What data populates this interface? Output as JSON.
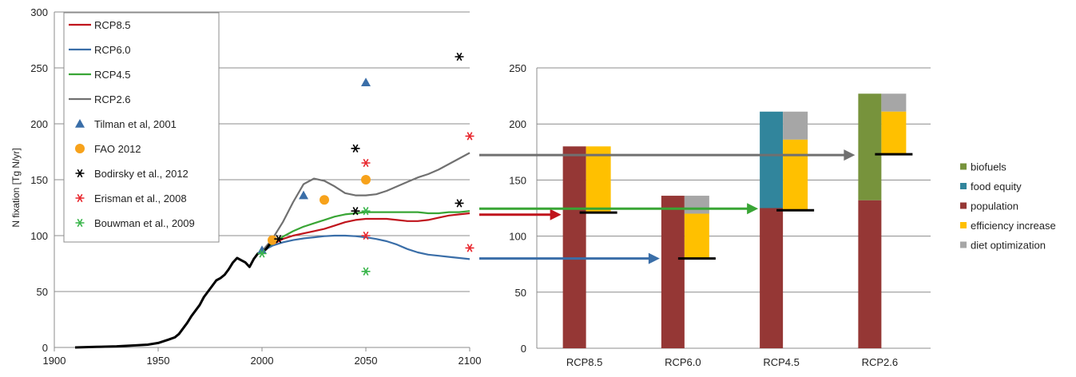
{
  "colors": {
    "rcp85": "#c0141c",
    "rcp60": "#3a6ea8",
    "rcp45": "#39a535",
    "rcp26": "#707070",
    "historical": "#000000",
    "tilman": "#3a6ea8",
    "fao": "#f7a21b",
    "bodirsky": "#000000",
    "erisman": "#e8262d",
    "bouwman": "#39b54a",
    "biofuels": "#77933c",
    "food_equity": "#31859c",
    "population": "#953735",
    "efficiency_increase": "#ffc000",
    "diet_optimization": "#a6a6a6",
    "grid": "#8c8c8c",
    "target_line": "#000000"
  },
  "chart_data": [
    {
      "type": "line",
      "xlim": [
        1900,
        2100
      ],
      "ylim": [
        0,
        300
      ],
      "x_ticks": [
        "1900",
        "1950",
        "2000",
        "2050",
        "2100"
      ],
      "y_ticks": [
        "0",
        "50",
        "100",
        "150",
        "200",
        "250",
        "300"
      ],
      "ylabel": "N fixation [Tg N/yr]",
      "xlabel": "",
      "grid": "horizontal",
      "legend_position": "top-left",
      "legend": [
        "RCP8.5",
        "RCP6.0",
        "RCP4.5",
        "RCP2.6",
        "Tilman et al, 2001",
        "FAO 2012",
        "Bodirsky et al., 2012",
        "Erisman et al., 2008",
        "Bouwman et al., 2009"
      ],
      "historical": {
        "x": [
          1910,
          1920,
          1930,
          1940,
          1945,
          1950,
          1955,
          1958,
          1960,
          1962,
          1964,
          1966,
          1968,
          1970,
          1972,
          1974,
          1976,
          1978,
          1980,
          1982,
          1984,
          1986,
          1988,
          1990,
          1992,
          1994,
          1996,
          1998,
          2000,
          2002,
          2004,
          2006,
          2008
        ],
        "y": [
          0,
          0.5,
          1,
          2,
          2.5,
          4,
          7,
          9,
          12,
          17,
          22,
          28,
          33,
          38,
          45,
          50,
          55,
          60,
          62,
          65,
          70,
          76,
          80,
          78,
          76,
          72,
          79,
          84,
          85,
          88,
          93,
          95,
          97
        ]
      },
      "series": [
        {
          "name": "RCP8.5",
          "color_key": "rcp85",
          "x": [
            2000,
            2005,
            2010,
            2015,
            2020,
            2025,
            2030,
            2035,
            2040,
            2045,
            2050,
            2055,
            2060,
            2065,
            2070,
            2075,
            2080,
            2085,
            2090,
            2095,
            2100
          ],
          "y": [
            86,
            92,
            97,
            100,
            102,
            104,
            106,
            109,
            112,
            114,
            115,
            115,
            115,
            114,
            113,
            113,
            114,
            116,
            118,
            119,
            120
          ]
        },
        {
          "name": "RCP6.0",
          "color_key": "rcp60",
          "x": [
            2000,
            2005,
            2010,
            2015,
            2020,
            2025,
            2030,
            2035,
            2040,
            2045,
            2050,
            2055,
            2060,
            2065,
            2070,
            2075,
            2080,
            2085,
            2090,
            2095,
            2100
          ],
          "y": [
            86,
            91,
            94,
            96,
            97.5,
            98.5,
            99.5,
            100,
            100,
            99.5,
            98.5,
            97,
            95,
            92,
            88,
            85,
            83,
            82,
            81,
            80,
            79
          ]
        },
        {
          "name": "RCP4.5",
          "color_key": "rcp45",
          "x": [
            2000,
            2005,
            2010,
            2015,
            2020,
            2025,
            2030,
            2035,
            2040,
            2045,
            2050,
            2055,
            2060,
            2065,
            2070,
            2075,
            2080,
            2085,
            2090,
            2095,
            2100
          ],
          "y": [
            86,
            93,
            99,
            104,
            108,
            111,
            114,
            117,
            119,
            120,
            121,
            121,
            121,
            121,
            121,
            121,
            120,
            120,
            121,
            121,
            122
          ]
        },
        {
          "name": "RCP2.6",
          "color_key": "rcp26",
          "x": [
            2000,
            2005,
            2010,
            2015,
            2020,
            2025,
            2030,
            2035,
            2040,
            2045,
            2050,
            2055,
            2060,
            2065,
            2070,
            2075,
            2080,
            2085,
            2090,
            2095,
            2100
          ],
          "y": [
            86,
            97,
            112,
            130,
            146,
            151,
            149,
            144,
            138,
            136,
            136,
            137,
            140,
            144,
            148,
            152,
            155,
            159,
            164,
            169,
            174
          ]
        }
      ],
      "points": [
        {
          "name": "Tilman et al, 2001",
          "marker": "triangle",
          "color_key": "tilman",
          "x": [
            2000,
            2020,
            2050
          ],
          "y": [
            87,
            136,
            237
          ]
        },
        {
          "name": "FAO 2012",
          "marker": "circle",
          "color_key": "fao",
          "x": [
            2005,
            2030,
            2050
          ],
          "y": [
            96,
            132,
            150
          ]
        },
        {
          "name": "Bodirsky et al., 2012",
          "marker": "asterisk",
          "color_key": "bodirsky",
          "x": [
            2008,
            2045,
            2045,
            2095,
            2095
          ],
          "y": [
            97,
            178,
            122,
            129,
            260
          ]
        },
        {
          "name": "Erisman et al., 2008",
          "marker": "asterisk",
          "color_key": "erisman",
          "x": [
            2050,
            2050,
            2100,
            2100
          ],
          "y": [
            100,
            165,
            89,
            189
          ]
        },
        {
          "name": "Bouwman et al., 2009",
          "marker": "asterisk",
          "color_key": "bouwman",
          "x": [
            2000,
            2050,
            2050
          ],
          "y": [
            84,
            122,
            68
          ]
        }
      ]
    },
    {
      "type": "bar",
      "ylim": [
        0,
        250
      ],
      "y_ticks": [
        "0",
        "50",
        "100",
        "150",
        "200",
        "250"
      ],
      "categories": [
        "RCP8.5",
        "RCP6.0",
        "RCP4.5",
        "RCP2.6"
      ],
      "grid": "horizontal",
      "legend_position": "right",
      "legend": [
        {
          "label": "biofuels",
          "color_key": "biofuels"
        },
        {
          "label": "food equity",
          "color_key": "food_equity"
        },
        {
          "label": "population",
          "color_key": "population"
        },
        {
          "label": "efficiency increase",
          "color_key": "efficiency_increase"
        },
        {
          "label": "diet optimization",
          "color_key": "diet_optimization"
        }
      ],
      "bars": [
        {
          "category": "RCP8.5",
          "left": [
            {
              "component": "population",
              "from": 0,
              "to": 180
            }
          ],
          "right": [
            {
              "component": "efficiency_increase",
              "from": 121,
              "to": 180
            }
          ],
          "result": 121,
          "arrow_from_y": 122,
          "arrow_color_key": "rcp85"
        },
        {
          "category": "RCP6.0",
          "left": [
            {
              "component": "population",
              "from": 0,
              "to": 136
            }
          ],
          "right": [
            {
              "component": "diet_optimization",
              "from": 120,
              "to": 136
            },
            {
              "component": "efficiency_increase",
              "from": 80,
              "to": 120
            }
          ],
          "result": 80,
          "arrow_from_y": 80,
          "arrow_color_key": "rcp60"
        },
        {
          "category": "RCP4.5",
          "left": [
            {
              "component": "population",
              "from": 0,
              "to": 125
            },
            {
              "component": "food_equity",
              "from": 125,
              "to": 211
            }
          ],
          "right": [
            {
              "component": "diet_optimization",
              "from": 186,
              "to": 211
            },
            {
              "component": "efficiency_increase",
              "from": 123,
              "to": 186
            }
          ],
          "result": 123,
          "arrow_from_y": 123,
          "arrow_color_key": "rcp45"
        },
        {
          "category": "RCP2.6",
          "left": [
            {
              "component": "population",
              "from": 0,
              "to": 132
            },
            {
              "component": "biofuels",
              "from": 132,
              "to": 227
            }
          ],
          "right": [
            {
              "component": "diet_optimization",
              "from": 211,
              "to": 227
            },
            {
              "component": "efficiency_increase",
              "from": 173,
              "to": 211
            }
          ],
          "result": 173,
          "arrow_from_y": 173,
          "arrow_color_key": "rcp26"
        }
      ]
    }
  ]
}
